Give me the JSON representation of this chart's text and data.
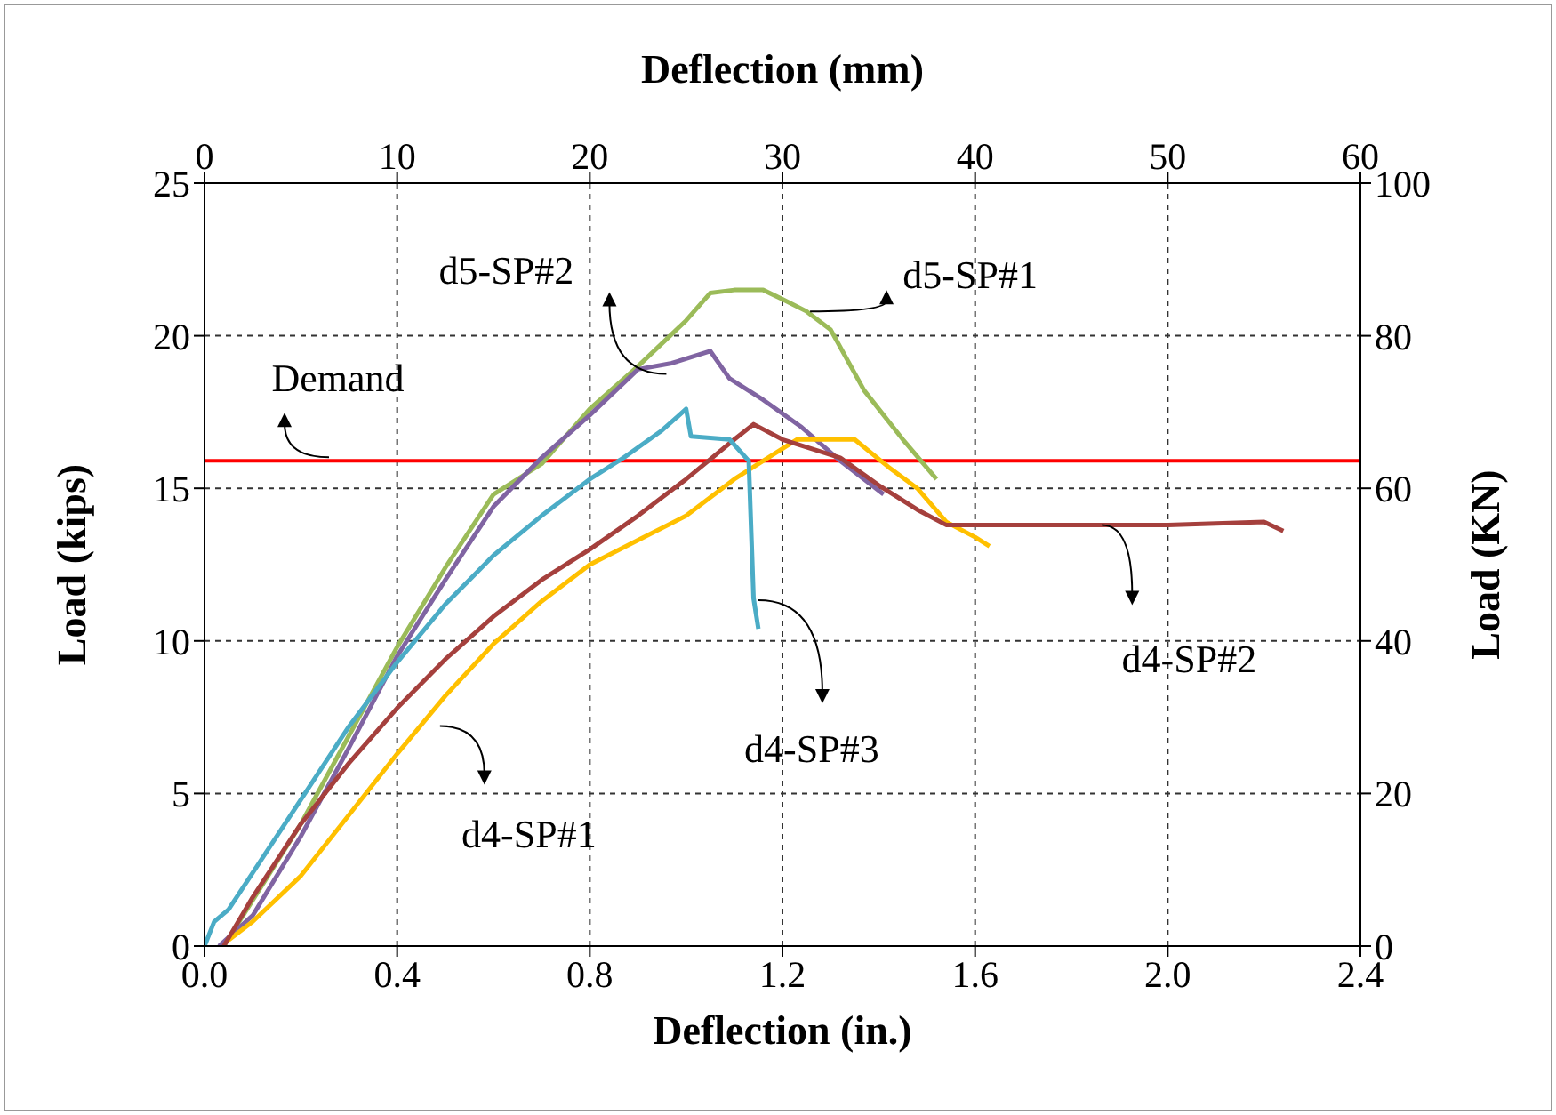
{
  "chart_data": {
    "type": "line",
    "xlabel": "Deflection (in.)",
    "ylabel": "Load (kips)",
    "y2label": "Load (KN)",
    "x2label": "Deflection (mm)",
    "xlim": [
      0,
      2.4
    ],
    "xticks": [
      {
        "value": 0,
        "label": "0.0"
      },
      0.4,
      0.8,
      1.2,
      1.6,
      {
        "value": 2,
        "label": "2.0"
      },
      2.4
    ],
    "ylim": [
      0,
      25
    ],
    "yticks": [
      0,
      5,
      10,
      15,
      20,
      25
    ],
    "y2lim": [
      0,
      100
    ],
    "y2ticks": [
      0,
      20,
      40,
      60,
      80,
      100
    ],
    "x2lim": [
      0,
      60
    ],
    "x2ticks": [
      0,
      10,
      20,
      30,
      40,
      50,
      60
    ],
    "grid": true,
    "legend": false,
    "marker": "none",
    "line_style": "solid",
    "ref_lines": [
      {
        "axis": "y",
        "value": 15.9,
        "label": "Demand",
        "color": "#ff0000"
      }
    ],
    "series": [
      {
        "name": "d5-SP#1",
        "color": "#9bbb59",
        "x": [
          0.04,
          0.1,
          0.2,
          0.3,
          0.4,
          0.5,
          0.6,
          0.7,
          0.8,
          0.9,
          1.0,
          1.05,
          1.1,
          1.16,
          1.2,
          1.25,
          1.3,
          1.37,
          1.45,
          1.52
        ],
        "values": [
          0,
          1.5,
          4.0,
          6.9,
          9.8,
          12.4,
          14.8,
          15.8,
          17.6,
          19.0,
          20.5,
          21.4,
          21.5,
          21.5,
          21.2,
          20.8,
          20.2,
          18.2,
          16.6,
          15.3
        ]
      },
      {
        "name": "d5-SP#2",
        "color": "#8064a2",
        "x": [
          0.03,
          0.1,
          0.2,
          0.3,
          0.4,
          0.5,
          0.6,
          0.7,
          0.8,
          0.9,
          0.97,
          1.05,
          1.09,
          1.16,
          1.24,
          1.32,
          1.41
        ],
        "values": [
          0,
          1.0,
          3.6,
          6.5,
          9.5,
          12.0,
          14.4,
          16.0,
          17.4,
          18.9,
          19.1,
          19.5,
          18.6,
          17.9,
          17.0,
          15.9,
          14.8
        ]
      },
      {
        "name": "d4-SP#1",
        "color": "#ffc000",
        "x": [
          0.05,
          0.1,
          0.2,
          0.3,
          0.4,
          0.5,
          0.6,
          0.7,
          0.8,
          0.9,
          1.0,
          1.1,
          1.2,
          1.23,
          1.3,
          1.35,
          1.42,
          1.48,
          1.54,
          1.6,
          1.63
        ],
        "values": [
          0.2,
          0.8,
          2.3,
          4.3,
          6.3,
          8.2,
          9.9,
          11.3,
          12.5,
          13.3,
          14.1,
          15.3,
          16.3,
          16.6,
          16.6,
          16.6,
          15.7,
          15.0,
          13.9,
          13.4,
          13.1
        ]
      },
      {
        "name": "d4-SP#2",
        "color": "#a5403d",
        "x": [
          0.04,
          0.1,
          0.2,
          0.3,
          0.4,
          0.5,
          0.6,
          0.7,
          0.8,
          0.9,
          1.0,
          1.1,
          1.14,
          1.2,
          1.32,
          1.4,
          1.48,
          1.54,
          1.8,
          2.0,
          2.2,
          2.24
        ],
        "values": [
          0,
          1.6,
          4.0,
          6.0,
          7.8,
          9.4,
          10.8,
          12.0,
          13.0,
          14.1,
          15.3,
          16.6,
          17.1,
          16.6,
          16.0,
          15.1,
          14.3,
          13.8,
          13.8,
          13.8,
          13.9,
          13.6
        ]
      },
      {
        "name": "d4-SP#3",
        "color": "#4bacc6",
        "x": [
          0,
          0.02,
          0.05,
          0.1,
          0.2,
          0.3,
          0.4,
          0.5,
          0.6,
          0.7,
          0.8,
          0.87,
          0.95,
          1.0,
          1.01,
          1.09,
          1.13,
          1.14,
          1.15
        ],
        "values": [
          0,
          0.8,
          1.2,
          2.4,
          4.8,
          7.2,
          9.3,
          11.2,
          12.8,
          14.1,
          15.3,
          16.0,
          16.9,
          17.6,
          16.7,
          16.6,
          15.9,
          11.4,
          10.4
        ]
      }
    ]
  }
}
